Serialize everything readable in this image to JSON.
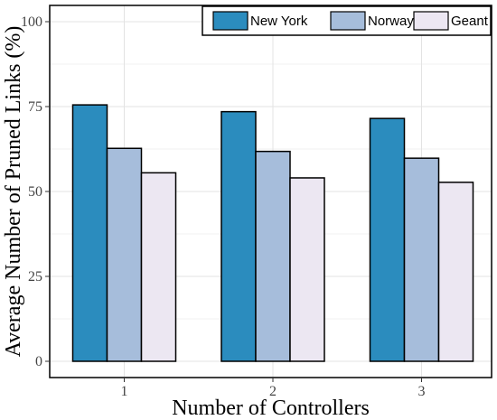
{
  "chart_data": {
    "type": "bar",
    "categories": [
      "1",
      "2",
      "3"
    ],
    "series": [
      {
        "name": "New York",
        "values": [
          75.5,
          73.5,
          71.5
        ],
        "color": "#2b8cbe"
      },
      {
        "name": "Norway",
        "values": [
          62.7,
          61.8,
          59.8
        ],
        "color": "#a6bddb"
      },
      {
        "name": "Geant",
        "values": [
          55.5,
          54.0,
          52.7
        ],
        "color": "#ece7f2"
      }
    ],
    "xlabel": "Number of Controllers",
    "ylabel": "Average Number of Pruned Links (%)",
    "ylim": [
      0,
      100
    ],
    "yticks": [
      0,
      25,
      50,
      75,
      100
    ],
    "grid": true,
    "legend_position": "top-right"
  }
}
